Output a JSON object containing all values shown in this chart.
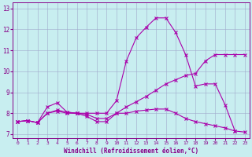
{
  "xlabel": "Windchill (Refroidissement éolien,°C)",
  "xlim": [
    -0.5,
    23.5
  ],
  "ylim": [
    6.8,
    13.3
  ],
  "yticks": [
    7,
    8,
    9,
    10,
    11,
    12,
    13
  ],
  "xticks": [
    0,
    1,
    2,
    3,
    4,
    5,
    6,
    7,
    8,
    9,
    10,
    11,
    12,
    13,
    14,
    15,
    16,
    17,
    18,
    19,
    20,
    21,
    22,
    23
  ],
  "background_color": "#c8eef0",
  "line_color": "#aa00aa",
  "grid_color": "#a0a8cc",
  "series": [
    {
      "x": [
        0,
        1,
        2,
        3,
        4,
        5,
        6,
        7,
        8,
        9,
        10,
        11,
        12,
        13,
        14,
        15,
        16,
        17,
        18,
        19,
        20,
        21,
        22
      ],
      "y": [
        7.6,
        7.65,
        7.55,
        8.3,
        8.5,
        8.05,
        8.0,
        8.0,
        8.0,
        8.0,
        8.6,
        10.5,
        11.6,
        12.1,
        12.55,
        12.55,
        11.85,
        10.8,
        9.3,
        9.4,
        9.4,
        8.4,
        7.15
      ]
    },
    {
      "x": [
        0,
        1,
        2,
        3,
        4,
        5,
        6,
        7,
        8,
        9,
        10,
        11,
        12,
        13,
        14,
        15,
        16,
        17,
        18,
        19,
        20,
        21,
        22,
        23
      ],
      "y": [
        7.6,
        7.65,
        7.55,
        8.0,
        8.15,
        8.05,
        8.0,
        7.95,
        7.75,
        7.75,
        8.0,
        8.3,
        8.55,
        8.8,
        9.1,
        9.4,
        9.6,
        9.8,
        9.9,
        10.5,
        10.8,
        10.8,
        10.8,
        10.8
      ]
    },
    {
      "x": [
        0,
        1,
        2,
        3,
        4,
        5,
        6,
        7,
        8,
        9,
        10,
        11,
        12,
        13,
        14,
        15,
        16,
        17,
        18,
        19,
        20,
        21,
        22,
        23
      ],
      "y": [
        7.6,
        7.65,
        7.55,
        8.0,
        8.1,
        8.0,
        8.0,
        7.85,
        7.6,
        7.6,
        8.0,
        8.0,
        8.1,
        8.15,
        8.2,
        8.2,
        8.0,
        7.75,
        7.6,
        7.5,
        7.4,
        7.3,
        7.15,
        7.1
      ]
    }
  ]
}
